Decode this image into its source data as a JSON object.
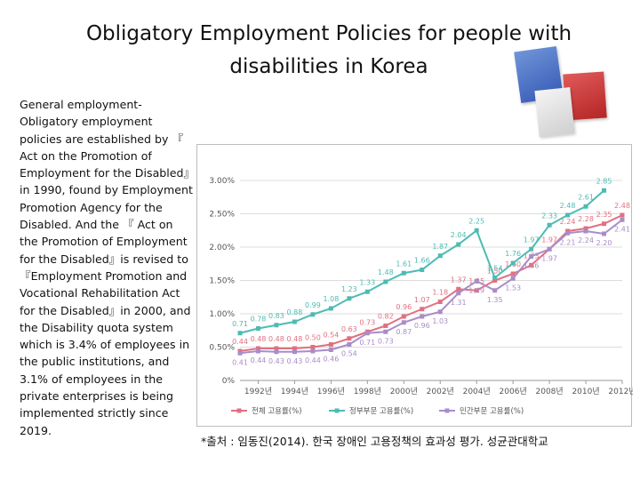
{
  "slide": {
    "title": "Obligatory  Employment Policies for people with disabilities in Korea",
    "body": "General employment-Obligatory employment policies are established by 『 Act on the Promotion of Employment for the Disabled』in 1990, found by Employment Promotion Agency for the Disabled. And the 『 Act on the Promotion of Employment for the Disabled』is revised to 『Employment Promotion and Vocational Rehabilitation Act for the Disabled』in 2000, and the Disability quota system which is 3.4% of employees in the public institutions, and 3.1% of employees in the private enterprises is being implemented strictly since 2019.",
    "source": "*출처 : 임동진(2014). 한국 장애인 고용정책의 효과성 평가. 성균관대학교"
  },
  "chart_data": {
    "type": "line",
    "title": "",
    "xlabel": "",
    "ylabel": "",
    "ylim": [
      0,
      3.0
    ],
    "y_ticks": [
      "0%",
      "0.50%",
      "1.00%",
      "1.50%",
      "2.00%",
      "2.50%",
      "3.00%"
    ],
    "x_labels": [
      "1992년",
      "1994년",
      "1996년",
      "1998년",
      "2000년",
      "2002년",
      "2004년",
      "2006년",
      "2008년",
      "2010년",
      "2012년"
    ],
    "x": [
      1991,
      1992,
      1993,
      1994,
      1995,
      1996,
      1997,
      1998,
      1999,
      2000,
      2001,
      2002,
      2003,
      2004,
      2005,
      2006,
      2007,
      2008,
      2009,
      2010,
      2011,
      2012
    ],
    "grid": true,
    "legend_position": "bottom",
    "series": [
      {
        "name": "전체 고용률(%)",
        "color": "#e07080",
        "values": [
          0.44,
          0.48,
          0.48,
          0.48,
          0.5,
          0.54,
          0.63,
          0.73,
          0.82,
          0.96,
          1.07,
          1.18,
          1.37,
          1.35,
          1.5,
          1.6,
          1.73,
          1.97,
          2.24,
          2.28,
          2.35,
          2.48
        ]
      },
      {
        "name": "정부부문 고용률(%)",
        "color": "#4dbbb3",
        "values": [
          0.71,
          0.78,
          0.83,
          0.88,
          0.99,
          1.08,
          1.23,
          1.33,
          1.48,
          1.61,
          1.66,
          1.87,
          2.04,
          2.25,
          1.54,
          1.76,
          1.97,
          2.33,
          2.48,
          2.61,
          2.85,
          null
        ]
      },
      {
        "name": "민간부문 고용률(%)",
        "color": "#a98cc8",
        "values": [
          0.41,
          0.44,
          0.43,
          0.43,
          0.44,
          0.46,
          0.54,
          0.71,
          0.73,
          0.87,
          0.96,
          1.03,
          1.31,
          1.49,
          1.35,
          1.53,
          1.86,
          1.97,
          2.21,
          2.24,
          2.2,
          2.41
        ]
      }
    ]
  },
  "colors": {
    "grid": "#dcdcdc",
    "axis_text": "#555555"
  }
}
